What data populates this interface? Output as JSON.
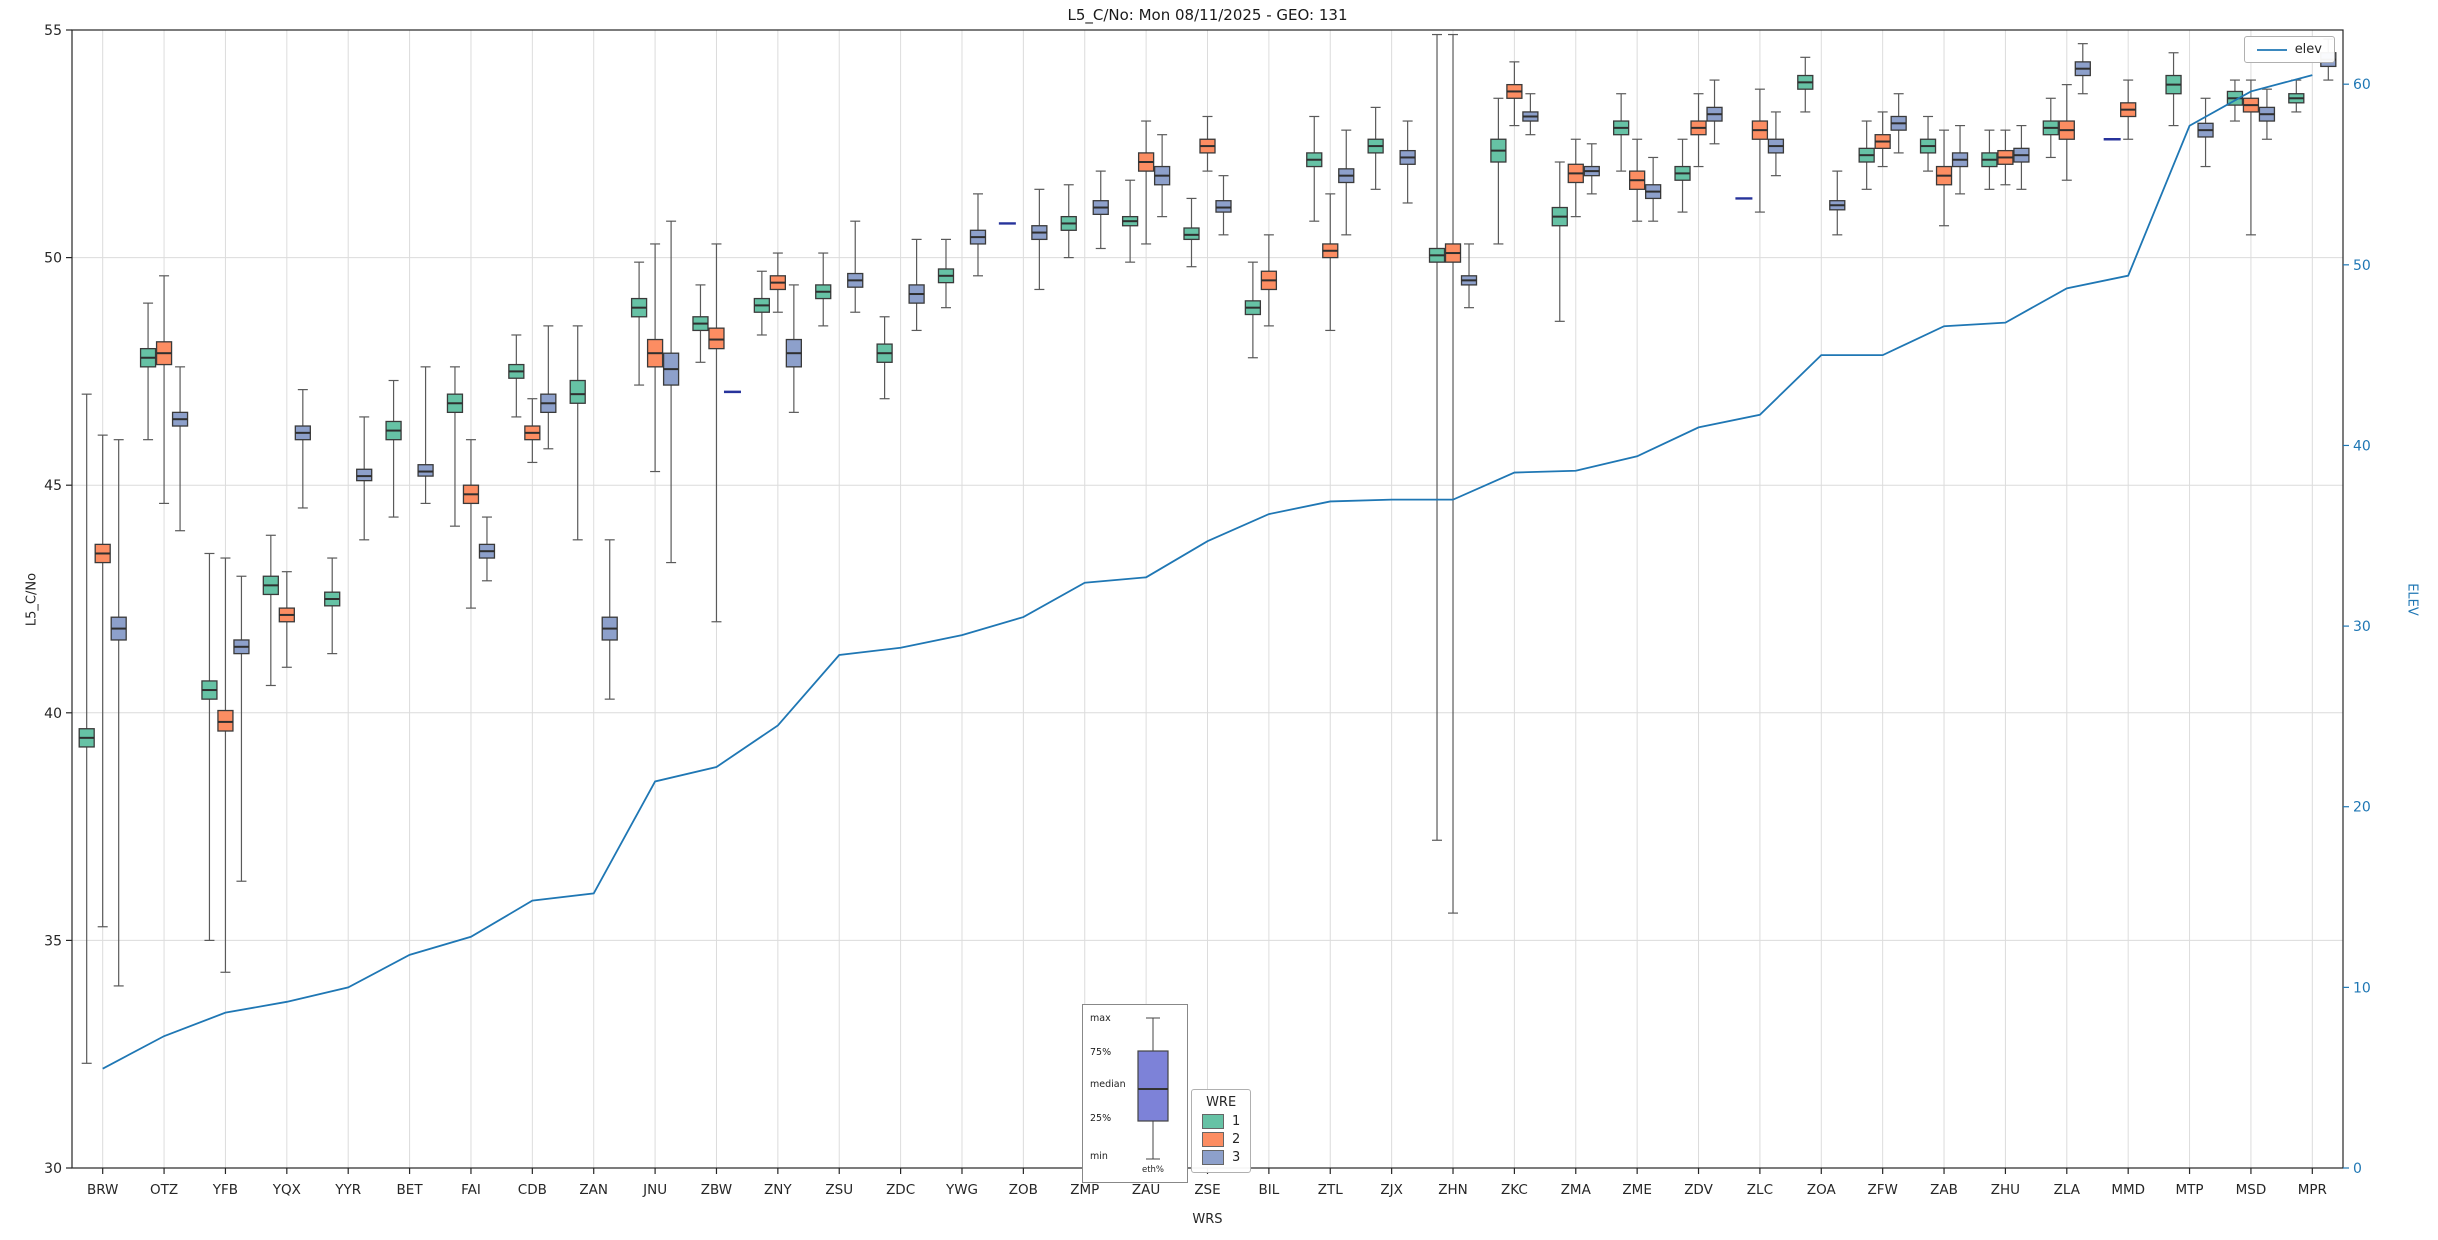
{
  "chart_data": {
    "type": "boxplot+line",
    "title": "L5_C/No: Mon 08/11/2025 - GEO: 131",
    "xlabel": "WRS",
    "ylabel_left": "L5_C/No",
    "ylabel_right": "ELEV",
    "ylim_left": [
      30,
      55
    ],
    "ylim_right": [
      0,
      63
    ],
    "yticks_left": [
      30,
      35,
      40,
      45,
      50,
      55
    ],
    "yticks_right": [
      0,
      10,
      20,
      30,
      40,
      50,
      60
    ],
    "grid": true,
    "categories": [
      "BRW",
      "OTZ",
      "YFB",
      "YQX",
      "YYR",
      "BET",
      "FAI",
      "CDB",
      "ZAN",
      "JNU",
      "ZBW",
      "ZNY",
      "ZSU",
      "ZDC",
      "YWG",
      "ZOB",
      "ZMP",
      "ZAU",
      "ZSE",
      "BIL",
      "ZTL",
      "ZJX",
      "ZHN",
      "ZKC",
      "ZMA",
      "ZME",
      "ZDV",
      "ZLC",
      "ZOA",
      "ZFW",
      "ZAB",
      "ZHU",
      "ZLA",
      "MMD",
      "MTP",
      "MSD",
      "MPR"
    ],
    "groups": [
      {
        "label": "1",
        "color": "#66c2a5"
      },
      {
        "label": "2",
        "color": "#fc8d62"
      },
      {
        "label": "3",
        "color": "#8da0cb"
      }
    ],
    "boxes_format": [
      "station",
      "group",
      "whisker_low",
      "q1",
      "median",
      "q3",
      "whisker_high"
    ],
    "boxes": [
      [
        "BRW",
        "1",
        32.3,
        39.25,
        39.45,
        39.65,
        47.0
      ],
      [
        "BRW",
        "2",
        35.3,
        43.3,
        43.5,
        43.7,
        46.1
      ],
      [
        "BRW",
        "3",
        34.0,
        41.6,
        41.85,
        42.1,
        46.0
      ],
      [
        "OTZ",
        "1",
        46.0,
        47.6,
        47.8,
        48.0,
        49.0
      ],
      [
        "OTZ",
        "2",
        44.6,
        47.65,
        47.9,
        48.15,
        49.6
      ],
      [
        "OTZ",
        "3",
        44.0,
        46.3,
        46.45,
        46.6,
        47.6
      ],
      [
        "YFB",
        "1",
        35.0,
        40.3,
        40.5,
        40.7,
        43.5
      ],
      [
        "YFB",
        "2",
        34.3,
        39.6,
        39.8,
        40.05,
        43.4
      ],
      [
        "YFB",
        "3",
        36.3,
        41.3,
        41.45,
        41.6,
        43.0
      ],
      [
        "YQX",
        "1",
        40.6,
        42.6,
        42.8,
        43.0,
        43.9
      ],
      [
        "YQX",
        "2",
        41.0,
        42.0,
        42.15,
        42.3,
        43.1
      ],
      [
        "YQX",
        "3",
        44.5,
        46.0,
        46.15,
        46.3,
        47.1
      ],
      [
        "YYR",
        "1",
        41.3,
        42.35,
        42.5,
        42.65,
        43.4
      ],
      [
        "YYR",
        "3",
        43.8,
        45.1,
        45.2,
        45.35,
        46.5
      ],
      [
        "BET",
        "1",
        44.3,
        46.0,
        46.2,
        46.4,
        47.3
      ],
      [
        "BET",
        "3",
        44.6,
        45.2,
        45.3,
        45.45,
        47.6
      ],
      [
        "FAI",
        "1",
        44.1,
        46.6,
        46.8,
        47.0,
        47.6
      ],
      [
        "FAI",
        "2",
        42.3,
        44.6,
        44.8,
        45.0,
        46.0
      ],
      [
        "FAI",
        "3",
        42.9,
        43.4,
        43.55,
        43.7,
        44.3
      ],
      [
        "CDB",
        "1",
        46.5,
        47.35,
        47.5,
        47.65,
        48.3
      ],
      [
        "CDB",
        "2",
        45.5,
        46.0,
        46.15,
        46.3,
        46.9
      ],
      [
        "CDB",
        "3",
        45.8,
        46.6,
        46.8,
        47.0,
        48.5
      ],
      [
        "ZAN",
        "1",
        43.8,
        46.8,
        47.0,
        47.3,
        48.5
      ],
      [
        "ZAN",
        "3",
        40.3,
        41.6,
        41.85,
        42.1,
        43.8
      ],
      [
        "JNU",
        "1",
        47.2,
        48.7,
        48.9,
        49.1,
        49.9
      ],
      [
        "JNU",
        "2",
        45.3,
        47.6,
        47.9,
        48.2,
        50.3
      ],
      [
        "JNU",
        "3",
        43.3,
        47.2,
        47.55,
        47.9,
        50.8
      ],
      [
        "ZBW",
        "1",
        47.7,
        48.4,
        48.55,
        48.7,
        49.4
      ],
      [
        "ZBW",
        "2",
        42.0,
        48.0,
        48.2,
        48.45,
        50.3
      ],
      [
        "ZBW",
        "3",
        47.05,
        47.05,
        47.05,
        47.05,
        47.05
      ],
      [
        "ZNY",
        "1",
        48.3,
        48.8,
        48.95,
        49.1,
        49.7
      ],
      [
        "ZNY",
        "2",
        48.8,
        49.3,
        49.45,
        49.6,
        50.1
      ],
      [
        "ZNY",
        "3",
        46.6,
        47.6,
        47.9,
        48.2,
        49.4
      ],
      [
        "ZSU",
        "1",
        48.5,
        49.1,
        49.25,
        49.4,
        50.1
      ],
      [
        "ZSU",
        "3",
        48.8,
        49.35,
        49.5,
        49.65,
        50.8
      ],
      [
        "ZDC",
        "1",
        46.9,
        47.7,
        47.9,
        48.1,
        48.7
      ],
      [
        "ZDC",
        "3",
        48.4,
        49.0,
        49.2,
        49.4,
        50.4
      ],
      [
        "YWG",
        "1",
        48.9,
        49.45,
        49.6,
        49.75,
        50.4
      ],
      [
        "YWG",
        "3",
        49.6,
        50.3,
        50.45,
        50.6,
        51.4
      ],
      [
        "ZOB",
        "1",
        50.75,
        50.75,
        50.75,
        50.75,
        50.75
      ],
      [
        "ZOB",
        "3",
        49.3,
        50.4,
        50.55,
        50.7,
        51.5
      ],
      [
        "ZMP",
        "1",
        50.0,
        50.6,
        50.75,
        50.9,
        51.6
      ],
      [
        "ZMP",
        "3",
        50.2,
        50.95,
        51.1,
        51.25,
        51.9
      ],
      [
        "ZAU",
        "1",
        49.9,
        50.7,
        50.8,
        50.9,
        51.7
      ],
      [
        "ZAU",
        "2",
        50.3,
        51.9,
        52.1,
        52.3,
        53.0
      ],
      [
        "ZAU",
        "3",
        50.9,
        51.6,
        51.8,
        52.0,
        52.7
      ],
      [
        "ZSE",
        "1",
        49.8,
        50.4,
        50.5,
        50.65,
        51.3
      ],
      [
        "ZSE",
        "2",
        51.9,
        52.3,
        52.45,
        52.6,
        53.1
      ],
      [
        "ZSE",
        "3",
        50.5,
        51.0,
        51.1,
        51.25,
        51.8
      ],
      [
        "BIL",
        "1",
        47.8,
        48.75,
        48.9,
        49.05,
        49.9
      ],
      [
        "BIL",
        "2",
        48.5,
        49.3,
        49.5,
        49.7,
        50.5
      ],
      [
        "ZTL",
        "1",
        50.8,
        52.0,
        52.15,
        52.3,
        53.1
      ],
      [
        "ZTL",
        "2",
        48.4,
        50.0,
        50.15,
        50.3,
        51.4
      ],
      [
        "ZTL",
        "3",
        50.5,
        51.65,
        51.8,
        51.95,
        52.8
      ],
      [
        "ZJX",
        "1",
        51.5,
        52.3,
        52.45,
        52.6,
        53.3
      ],
      [
        "ZJX",
        "3",
        51.2,
        52.05,
        52.2,
        52.35,
        53.0
      ],
      [
        "ZHN",
        "1",
        37.2,
        49.9,
        50.05,
        50.2,
        54.9
      ],
      [
        "ZHN",
        "2",
        35.6,
        49.9,
        50.1,
        50.3,
        54.9
      ],
      [
        "ZHN",
        "3",
        48.9,
        49.4,
        49.5,
        49.6,
        50.3
      ],
      [
        "ZKC",
        "1",
        50.3,
        52.1,
        52.35,
        52.6,
        53.5
      ],
      [
        "ZKC",
        "2",
        52.9,
        53.5,
        53.65,
        53.8,
        54.3
      ],
      [
        "ZKC",
        "3",
        52.7,
        53.0,
        53.1,
        53.2,
        53.6
      ],
      [
        "ZMA",
        "1",
        48.6,
        50.7,
        50.9,
        51.1,
        52.1
      ],
      [
        "ZMA",
        "2",
        50.9,
        51.65,
        51.85,
        52.05,
        52.6
      ],
      [
        "ZMA",
        "3",
        51.4,
        51.8,
        51.9,
        52.0,
        52.5
      ],
      [
        "ZME",
        "1",
        51.9,
        52.7,
        52.85,
        53.0,
        53.6
      ],
      [
        "ZME",
        "2",
        50.8,
        51.5,
        51.7,
        51.9,
        52.6
      ],
      [
        "ZME",
        "3",
        50.8,
        51.3,
        51.45,
        51.6,
        52.2
      ],
      [
        "ZDV",
        "1",
        51.0,
        51.7,
        51.85,
        52.0,
        52.6
      ],
      [
        "ZDV",
        "2",
        52.0,
        52.7,
        52.85,
        53.0,
        53.6
      ],
      [
        "ZDV",
        "3",
        52.5,
        53.0,
        53.15,
        53.3,
        53.9
      ],
      [
        "ZLC",
        "1",
        51.3,
        51.3,
        51.3,
        51.3,
        51.3
      ],
      [
        "ZLC",
        "2",
        51.0,
        52.6,
        52.8,
        53.0,
        53.7
      ],
      [
        "ZLC",
        "3",
        51.8,
        52.3,
        52.45,
        52.6,
        53.2
      ],
      [
        "ZOA",
        "1",
        53.2,
        53.7,
        53.85,
        54.0,
        54.4
      ],
      [
        "ZOA",
        "3",
        50.5,
        51.05,
        51.15,
        51.25,
        51.9
      ],
      [
        "ZFW",
        "1",
        51.5,
        52.1,
        52.25,
        52.4,
        53.0
      ],
      [
        "ZFW",
        "2",
        52.0,
        52.4,
        52.55,
        52.7,
        53.2
      ],
      [
        "ZFW",
        "3",
        52.3,
        52.8,
        52.95,
        53.1,
        53.6
      ],
      [
        "ZAB",
        "1",
        51.9,
        52.3,
        52.45,
        52.6,
        53.1
      ],
      [
        "ZAB",
        "2",
        50.7,
        51.6,
        51.8,
        52.0,
        52.8
      ],
      [
        "ZAB",
        "3",
        51.4,
        52.0,
        52.15,
        52.3,
        52.9
      ],
      [
        "ZHU",
        "1",
        51.5,
        52.0,
        52.15,
        52.3,
        52.8
      ],
      [
        "ZHU",
        "2",
        51.6,
        52.05,
        52.2,
        52.35,
        52.8
      ],
      [
        "ZHU",
        "3",
        51.5,
        52.1,
        52.25,
        52.4,
        52.9
      ],
      [
        "ZLA",
        "1",
        52.2,
        52.7,
        52.85,
        53.0,
        53.5
      ],
      [
        "ZLA",
        "2",
        51.7,
        52.6,
        52.8,
        53.0,
        53.8
      ],
      [
        "ZLA",
        "3",
        53.6,
        54.0,
        54.15,
        54.3,
        54.7
      ],
      [
        "MMD",
        "1",
        52.6,
        52.6,
        52.6,
        52.6,
        52.6
      ],
      [
        "MMD",
        "2",
        52.6,
        53.1,
        53.25,
        53.4,
        53.9
      ],
      [
        "MTP",
        "1",
        52.9,
        53.6,
        53.8,
        54.0,
        54.5
      ],
      [
        "MTP",
        "3",
        52.0,
        52.65,
        52.8,
        52.95,
        53.5
      ],
      [
        "MSD",
        "1",
        53.0,
        53.35,
        53.5,
        53.65,
        53.9
      ],
      [
        "MSD",
        "2",
        50.5,
        53.2,
        53.35,
        53.5,
        53.9
      ],
      [
        "MSD",
        "3",
        52.6,
        53.0,
        53.15,
        53.3,
        53.7
      ],
      [
        "MPR",
        "1",
        53.2,
        53.4,
        53.5,
        53.6,
        53.9
      ],
      [
        "MPR",
        "3",
        53.9,
        54.2,
        54.35,
        54.5,
        54.8
      ]
    ],
    "elev_line": {
      "name": "elev",
      "color": "#1f77b4",
      "axis": "right",
      "values": [
        5.5,
        7.3,
        8.6,
        9.2,
        10.0,
        11.8,
        12.8,
        14.8,
        15.2,
        21.4,
        22.2,
        24.5,
        28.4,
        28.8,
        29.5,
        30.5,
        32.4,
        32.7,
        34.7,
        36.2,
        36.9,
        37.0,
        37.0,
        38.5,
        38.6,
        39.4,
        41.0,
        41.7,
        45.0,
        45.0,
        46.6,
        46.8,
        48.7,
        49.4,
        57.7,
        59.6,
        60.5
      ]
    },
    "legend_elev": {
      "label": "elev"
    },
    "legend_wre": {
      "title": "WRE"
    },
    "inset": {
      "box_color": "#7d82d8",
      "labels": {
        "max": "max",
        "p75": "75%",
        "median": "median",
        "p25": "25%",
        "min": "min",
        "axis": "eth%"
      }
    }
  }
}
